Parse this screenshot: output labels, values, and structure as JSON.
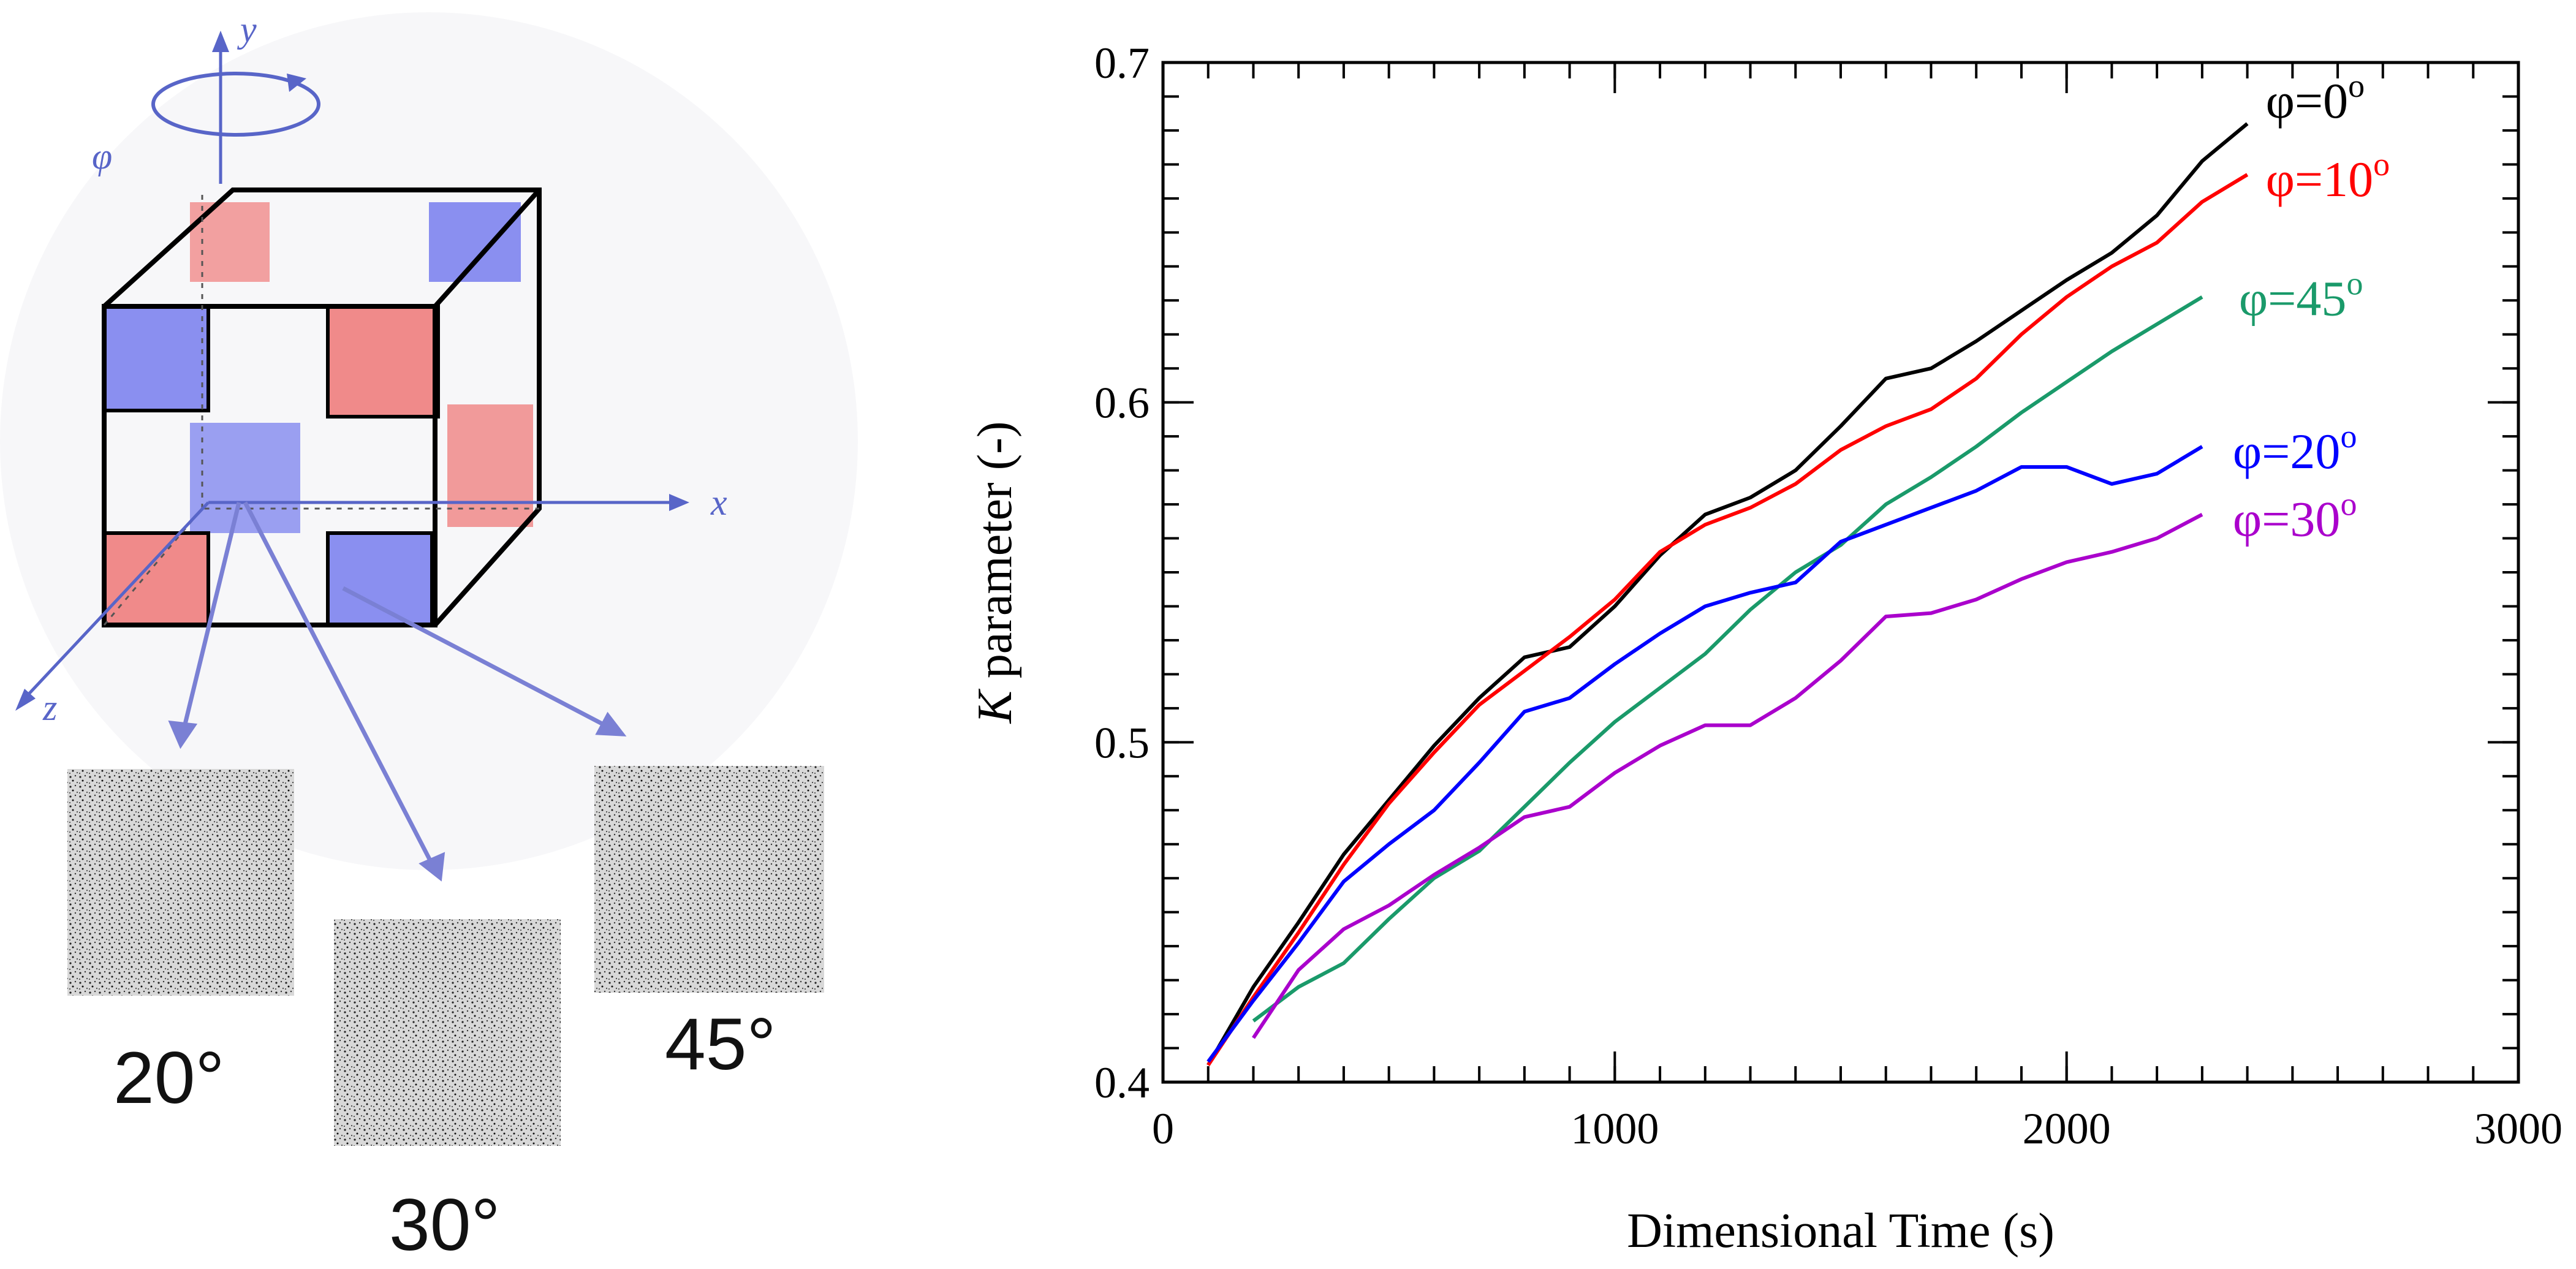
{
  "schematic": {
    "axis_labels": {
      "x": "x",
      "y": "y",
      "z": "z",
      "phi": "φ"
    },
    "angle_captions": [
      "20°",
      "30°",
      "45°"
    ],
    "colors": {
      "red_tile": "#f08a8a",
      "blue_tile": "#8a8ff0",
      "arrow": "#7a80d4",
      "axis": "#5865c8"
    }
  },
  "chart_data": {
    "type": "line",
    "title": "",
    "xlabel": "Dimensional Time (s)",
    "ylabel": {
      "italic": "K",
      "rest": " parameter (-)"
    },
    "xlim": [
      0,
      3000
    ],
    "ylim": [
      0.4,
      0.7
    ],
    "xticks": [
      0,
      1000,
      2000,
      3000
    ],
    "xtick_labels": [
      "0",
      "1000",
      "2000",
      "3000"
    ],
    "yticks": [
      0.4,
      0.5,
      0.6,
      0.7
    ],
    "ytick_labels": [
      "0.4",
      "0.5",
      "0.6",
      "0.7"
    ],
    "x_minor_step": 100,
    "y_minor_step": 0.01,
    "grid": false,
    "legend": "inline-right",
    "series": [
      {
        "name": "φ=0°",
        "label_main": "φ=0",
        "label_sup": "o",
        "color": "#000000",
        "x": [
          100,
          200,
          300,
          400,
          500,
          600,
          700,
          800,
          900,
          1000,
          1100,
          1200,
          1300,
          1400,
          1500,
          1600,
          1700,
          1800,
          1900,
          2000,
          2100,
          2200,
          2300,
          2400
        ],
        "y": [
          0.405,
          0.428,
          0.447,
          0.467,
          0.483,
          0.499,
          0.513,
          0.525,
          0.528,
          0.54,
          0.555,
          0.567,
          0.572,
          0.58,
          0.593,
          0.607,
          0.61,
          0.618,
          0.627,
          0.636,
          0.644,
          0.655,
          0.671,
          0.682
        ]
      },
      {
        "name": "φ=10°",
        "label_main": "φ=10",
        "label_sup": "o",
        "color": "#ff0000",
        "x": [
          100,
          200,
          300,
          400,
          500,
          600,
          700,
          800,
          900,
          1000,
          1100,
          1200,
          1300,
          1400,
          1500,
          1600,
          1700,
          1800,
          1900,
          2000,
          2100,
          2200,
          2300,
          2400
        ],
        "y": [
          0.405,
          0.425,
          0.444,
          0.464,
          0.482,
          0.497,
          0.511,
          0.521,
          0.531,
          0.542,
          0.556,
          0.564,
          0.569,
          0.576,
          0.586,
          0.593,
          0.598,
          0.607,
          0.62,
          0.631,
          0.64,
          0.647,
          0.659,
          0.667
        ]
      },
      {
        "name": "φ=45°",
        "label_main": "φ=45",
        "label_sup": "o",
        "color": "#1a9a6a",
        "x": [
          200,
          300,
          400,
          500,
          600,
          700,
          800,
          900,
          1000,
          1100,
          1200,
          1300,
          1400,
          1500,
          1600,
          1700,
          1800,
          1900,
          2000,
          2100,
          2200,
          2300
        ],
        "y": [
          0.418,
          0.428,
          0.435,
          0.448,
          0.46,
          0.468,
          0.481,
          0.494,
          0.506,
          0.516,
          0.526,
          0.539,
          0.55,
          0.558,
          0.57,
          0.578,
          0.587,
          0.597,
          0.606,
          0.615,
          0.623,
          0.631
        ]
      },
      {
        "name": "φ=20°",
        "label_main": "φ=20",
        "label_sup": "o",
        "color": "#0000ff",
        "x": [
          100,
          200,
          300,
          400,
          500,
          600,
          700,
          800,
          900,
          1000,
          1100,
          1200,
          1300,
          1400,
          1500,
          1600,
          1700,
          1800,
          1900,
          2000,
          2100,
          2200,
          2300
        ],
        "y": [
          0.406,
          0.424,
          0.441,
          0.459,
          0.47,
          0.48,
          0.494,
          0.509,
          0.513,
          0.523,
          0.532,
          0.54,
          0.544,
          0.547,
          0.559,
          0.564,
          0.569,
          0.574,
          0.581,
          0.581,
          0.576,
          0.579,
          0.587
        ]
      },
      {
        "name": "φ=30°",
        "label_main": "φ=30",
        "label_sup": "o",
        "color": "#aa00cc",
        "x": [
          200,
          300,
          400,
          500,
          600,
          700,
          800,
          900,
          1000,
          1100,
          1200,
          1300,
          1400,
          1500,
          1600,
          1700,
          1800,
          1900,
          2000,
          2100,
          2200,
          2300
        ],
        "y": [
          0.413,
          0.433,
          0.445,
          0.452,
          0.461,
          0.469,
          0.478,
          0.481,
          0.491,
          0.499,
          0.505,
          0.505,
          0.513,
          0.524,
          0.537,
          0.538,
          0.542,
          0.548,
          0.553,
          0.556,
          0.56,
          0.567
        ]
      }
    ]
  }
}
